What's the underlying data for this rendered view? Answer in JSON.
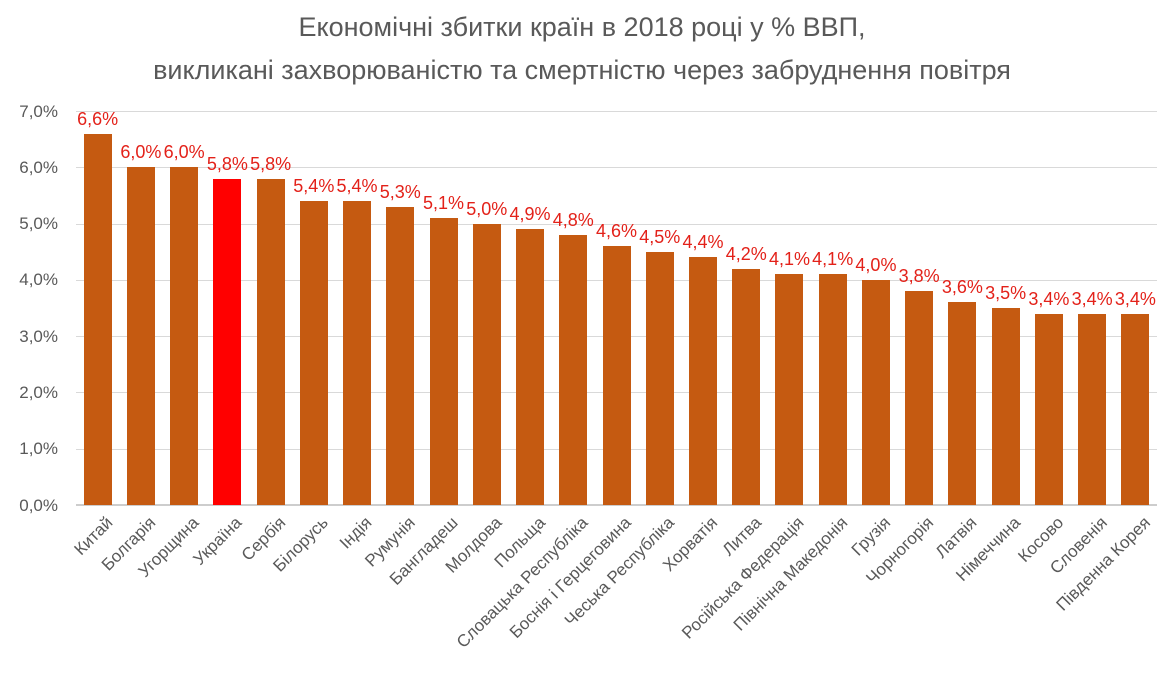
{
  "title": {
    "line1": "Економічні збитки країн в 2018 році у % ВВП,",
    "line2": "викликані захворюваністю та смертністю через забруднення повітря"
  },
  "chart_data": {
    "type": "bar",
    "title": "Економічні збитки країн в 2018 році у % ВВП, викликані захворюваністю та смертністю через забруднення повітря",
    "categories": [
      "Китай",
      "Болгарія",
      "Угорщина",
      "Україна",
      "Сербія",
      "Білорусь",
      "Індія",
      "Румунія",
      "Бангладеш",
      "Молдова",
      "Польща",
      "Словацька Республіка",
      "Боснія і Герцеговина",
      "Чеська Республіка",
      "Хорватія",
      "Литва",
      "Російська Федерація",
      "Північна Македонія",
      "Грузія",
      "Чорногорія",
      "Латвія",
      "Німеччина",
      "Косово",
      "Словенія",
      "Південна Корея"
    ],
    "values": [
      6.6,
      6.0,
      6.0,
      5.8,
      5.8,
      5.4,
      5.4,
      5.3,
      5.1,
      5.0,
      4.9,
      4.8,
      4.6,
      4.5,
      4.4,
      4.2,
      4.1,
      4.1,
      4.0,
      3.8,
      3.6,
      3.5,
      3.4,
      3.4,
      3.4
    ],
    "value_labels": [
      "6,6%",
      "6,0%",
      "6,0%",
      "5,8%",
      "5,8%",
      "5,4%",
      "5,4%",
      "5,3%",
      "5,1%",
      "5,0%",
      "4,9%",
      "4,8%",
      "4,6%",
      "4,5%",
      "4,4%",
      "4,2%",
      "4,1%",
      "4,1%",
      "4,0%",
      "3,8%",
      "3,6%",
      "3,5%",
      "3,4%",
      "3,4%",
      "3,4%"
    ],
    "highlight_category": "Україна",
    "highlight_index": 3,
    "xlabel": "",
    "ylabel": "",
    "ylim": [
      0,
      7
    ],
    "y_tick_labels": [
      "0,0%",
      "1,0%",
      "2,0%",
      "3,0%",
      "4,0%",
      "5,0%",
      "6,0%",
      "7,0%"
    ],
    "grid": true,
    "legend": false,
    "colors": {
      "bar": "#C55A11",
      "highlight": "#FF0000",
      "value_label": "#E32119",
      "axis_text": "#595959",
      "gridline": "#D9D9D9",
      "axis_line": "#CDCDCD",
      "background": "#FFFFFF"
    }
  }
}
